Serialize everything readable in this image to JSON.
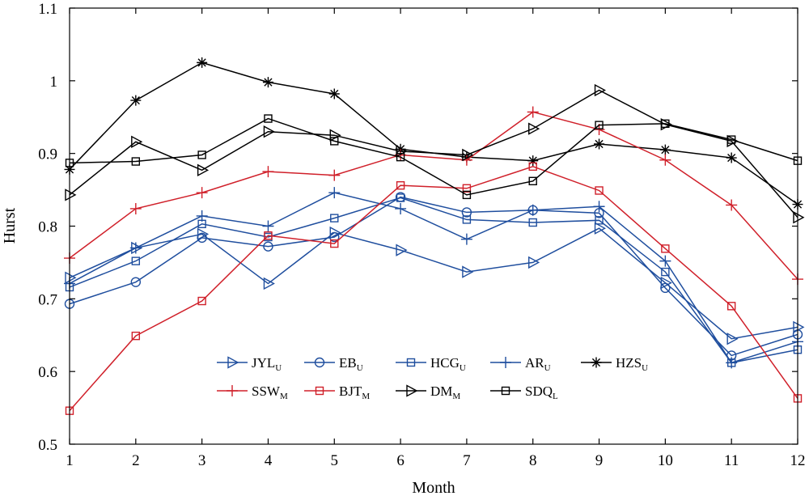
{
  "chart_data": {
    "type": "line",
    "xlabel": "Month",
    "ylabel": "Hurst",
    "xlim": [
      1,
      12
    ],
    "ylim": [
      0.5,
      1.1
    ],
    "x": [
      1,
      2,
      3,
      4,
      5,
      6,
      7,
      8,
      9,
      10,
      11,
      12
    ],
    "x_ticks": [
      1,
      2,
      3,
      4,
      5,
      6,
      7,
      8,
      9,
      10,
      11,
      12
    ],
    "y_ticks": [
      "0.5",
      "0.6",
      "0.7",
      "0.8",
      "0.9",
      "1",
      "1.1"
    ],
    "grid": false,
    "legend_position": "lower-center",
    "series": [
      {
        "name": "JYL",
        "sub": "U",
        "color": "#1f4e9e",
        "marker": "triangle-right",
        "values": [
          0.729,
          0.77,
          0.789,
          0.721,
          0.791,
          0.767,
          0.737,
          0.75,
          0.797,
          0.722,
          0.645,
          0.661
        ]
      },
      {
        "name": "EB",
        "sub": "U",
        "color": "#1f4e9e",
        "marker": "circle",
        "values": [
          0.693,
          0.723,
          0.784,
          0.772,
          0.785,
          0.84,
          0.819,
          0.822,
          0.818,
          0.715,
          0.622,
          0.651
        ]
      },
      {
        "name": "HCG",
        "sub": "U",
        "color": "#1f4e9e",
        "marker": "square",
        "values": [
          0.716,
          0.752,
          0.803,
          0.785,
          0.811,
          0.839,
          0.809,
          0.805,
          0.808,
          0.737,
          0.612,
          0.63
        ]
      },
      {
        "name": "AR",
        "sub": "U",
        "color": "#1f4e9e",
        "marker": "plus",
        "values": [
          0.721,
          0.77,
          0.814,
          0.8,
          0.846,
          0.824,
          0.782,
          0.822,
          0.827,
          0.752,
          0.612,
          0.641
        ]
      },
      {
        "name": "HZS",
        "sub": "U",
        "color": "#000000",
        "marker": "star",
        "values": [
          0.878,
          0.973,
          1.025,
          0.998,
          0.982,
          0.906,
          0.895,
          0.89,
          0.913,
          0.905,
          0.894,
          0.83
        ]
      },
      {
        "name": "SSW",
        "sub": "M",
        "color": "#d0202a",
        "marker": "plus",
        "values": [
          0.756,
          0.824,
          0.846,
          0.875,
          0.87,
          0.898,
          0.891,
          0.957,
          0.933,
          0.891,
          0.829,
          0.727
        ]
      },
      {
        "name": "BJT",
        "sub": "M",
        "color": "#d0202a",
        "marker": "square",
        "values": [
          0.546,
          0.649,
          0.697,
          0.787,
          0.776,
          0.856,
          0.852,
          0.882,
          0.849,
          0.769,
          0.69,
          0.563
        ]
      },
      {
        "name": "DM",
        "sub": "M",
        "color": "#000000",
        "marker": "triangle-right",
        "values": [
          0.843,
          0.916,
          0.877,
          0.93,
          0.925,
          0.903,
          0.898,
          0.934,
          0.987,
          0.94,
          0.917,
          0.812
        ]
      },
      {
        "name": "SDQ",
        "sub": "L",
        "color": "#000000",
        "marker": "square",
        "values": [
          0.887,
          0.889,
          0.898,
          0.948,
          0.917,
          0.895,
          0.843,
          0.862,
          0.939,
          0.941,
          0.919,
          0.89
        ]
      }
    ]
  }
}
